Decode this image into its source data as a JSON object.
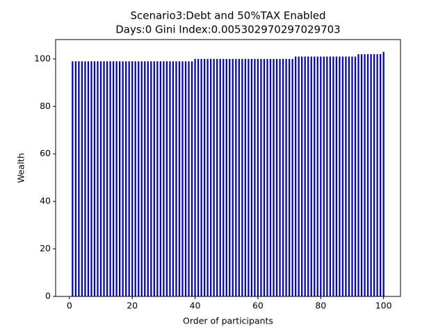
{
  "chart_data": {
    "type": "bar",
    "title": "Scenario3:Debt and 50%TAX Enabled",
    "subtitle": "Days:0  Gini Index:0.005302970297029703",
    "x_label": "Order of participants",
    "y_label": "Wealth",
    "x": [
      1,
      2,
      3,
      4,
      5,
      6,
      7,
      8,
      9,
      10,
      11,
      12,
      13,
      14,
      15,
      16,
      17,
      18,
      19,
      20,
      21,
      22,
      23,
      24,
      25,
      26,
      27,
      28,
      29,
      30,
      31,
      32,
      33,
      34,
      35,
      36,
      37,
      38,
      39,
      40,
      41,
      42,
      43,
      44,
      45,
      46,
      47,
      48,
      49,
      50,
      51,
      52,
      53,
      54,
      55,
      56,
      57,
      58,
      59,
      60,
      61,
      62,
      63,
      64,
      65,
      66,
      67,
      68,
      69,
      70,
      71,
      72,
      73,
      74,
      75,
      76,
      77,
      78,
      79,
      80,
      81,
      82,
      83,
      84,
      85,
      86,
      87,
      88,
      89,
      90,
      91,
      92,
      93,
      94,
      95,
      96,
      97,
      98,
      99,
      100
    ],
    "values": [
      99,
      99,
      99,
      99,
      99,
      99,
      99,
      99,
      99,
      99,
      99,
      99,
      99,
      99,
      99,
      99,
      99,
      99,
      99,
      99,
      99,
      99,
      99,
      99,
      99,
      99,
      99,
      99,
      99,
      99,
      99,
      99,
      99,
      99,
      99,
      99,
      99,
      99,
      99,
      100,
      100,
      100,
      100,
      100,
      100,
      100,
      100,
      100,
      100,
      100,
      100,
      100,
      100,
      100,
      100,
      100,
      100,
      100,
      100,
      100,
      100,
      100,
      100,
      100,
      100,
      100,
      100,
      100,
      100,
      100,
      100,
      101,
      101,
      101,
      101,
      101,
      101,
      101,
      101,
      101,
      101,
      101,
      101,
      101,
      101,
      101,
      101,
      101,
      101,
      101,
      101,
      102,
      102,
      102,
      102,
      102,
      102,
      102,
      102,
      103
    ],
    "color": "#0000cc",
    "xlim": [
      -4.39,
      105.39
    ],
    "xticks": [
      0,
      20,
      40,
      60,
      80,
      100
    ],
    "ylim": [
      0,
      108.15
    ],
    "yticks": [
      0,
      20,
      40,
      60,
      80,
      100
    ]
  }
}
